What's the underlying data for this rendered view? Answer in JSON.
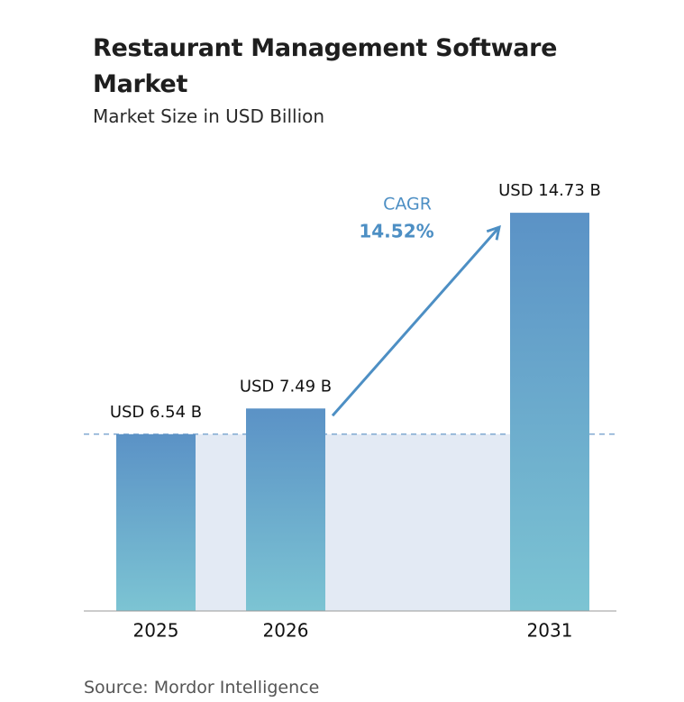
{
  "chart_data": {
    "type": "bar",
    "title": "Restaurant Management Software Market",
    "subtitle": "Market Size in USD Billion",
    "categories": [
      "2025",
      "2026",
      "2031"
    ],
    "values": [
      6.54,
      7.49,
      14.73
    ],
    "value_labels": [
      "USD 6.54 B",
      "USD 7.49 B",
      "USD 14.73 B"
    ],
    "ylim": [
      0,
      15
    ],
    "color": [
      "#5b92c6",
      "#7cc4d3"
    ],
    "annotation": {
      "label": "CAGR",
      "value_label": "14.52%",
      "color": "#4d8fc4"
    },
    "source": "Source: Mordor Intelligence"
  }
}
